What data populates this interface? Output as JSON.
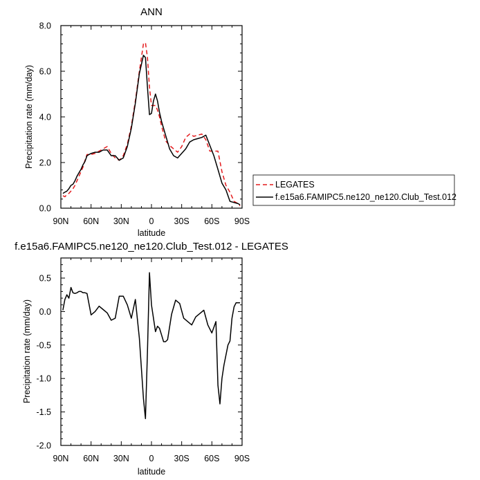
{
  "chart_data": [
    {
      "type": "line",
      "title": "ANN",
      "xlabel": "latitude",
      "ylabel": "Precipitation rate (mm/day)",
      "xlim": [
        90,
        -90
      ],
      "ylim": [
        0,
        8
      ],
      "xticks": [
        90,
        60,
        30,
        0,
        -30,
        -60,
        -90
      ],
      "xtick_labels": [
        "90N",
        "60N",
        "30N",
        "0",
        "30S",
        "60S",
        "90S"
      ],
      "yticks": [
        0,
        2,
        4,
        6,
        8
      ],
      "ytick_labels": [
        "0.0",
        "2.0",
        "4.0",
        "6.0",
        "8.0"
      ],
      "legend_position": "right",
      "series": [
        {
          "name": "LEGATES",
          "color": "#e41a1c",
          "dash": true,
          "x": [
            88,
            86,
            84,
            82,
            80,
            78,
            76,
            74,
            72,
            70,
            68,
            66,
            64,
            62,
            60,
            56,
            52,
            48,
            44,
            40,
            36,
            32,
            28,
            24,
            20,
            16,
            12,
            8,
            6,
            4,
            2,
            0,
            -2,
            -4,
            -6,
            -8,
            -10,
            -14,
            -18,
            -22,
            -26,
            -30,
            -34,
            -38,
            -42,
            -46,
            -50,
            -54,
            -58,
            -62,
            -66,
            -70,
            -74,
            -78,
            -82,
            -86,
            -88
          ],
          "y": [
            0.55,
            0.5,
            0.6,
            0.65,
            0.75,
            0.85,
            1.0,
            1.2,
            1.4,
            1.6,
            1.8,
            2.1,
            2.35,
            2.35,
            2.35,
            2.4,
            2.5,
            2.6,
            2.7,
            2.4,
            2.2,
            2.1,
            2.3,
            2.8,
            3.6,
            4.7,
            6.0,
            7.2,
            7.25,
            6.6,
            5.3,
            4.5,
            4.5,
            4.5,
            4.3,
            4.0,
            3.6,
            2.95,
            2.75,
            2.6,
            2.45,
            2.7,
            3.1,
            3.25,
            3.15,
            3.2,
            3.25,
            3.0,
            2.5,
            2.5,
            2.5,
            1.6,
            1.0,
            0.7,
            0.3,
            0.2,
            0.1
          ]
        },
        {
          "name": "f.e15a6.FAMIPC5.ne120_ne120.Club_Test.012",
          "color": "#000000",
          "dash": false,
          "x": [
            88,
            86,
            84,
            82,
            80,
            78,
            76,
            74,
            72,
            70,
            68,
            66,
            64,
            62,
            60,
            56,
            52,
            48,
            44,
            40,
            36,
            32,
            28,
            24,
            20,
            16,
            12,
            8,
            6,
            4,
            2,
            0,
            -2,
            -4,
            -6,
            -8,
            -10,
            -14,
            -18,
            -22,
            -26,
            -30,
            -34,
            -38,
            -42,
            -46,
            -50,
            -54,
            -58,
            -62,
            -66,
            -70,
            -74,
            -78,
            -82,
            -86,
            -88
          ],
          "y": [
            0.65,
            0.7,
            0.75,
            0.85,
            1.0,
            1.05,
            1.2,
            1.4,
            1.55,
            1.7,
            1.9,
            2.05,
            2.3,
            2.35,
            2.4,
            2.45,
            2.45,
            2.55,
            2.55,
            2.3,
            2.3,
            2.1,
            2.2,
            2.7,
            3.5,
            4.6,
            5.9,
            6.7,
            6.6,
            5.3,
            4.1,
            4.15,
            4.7,
            5.0,
            4.7,
            4.2,
            3.8,
            3.2,
            2.6,
            2.3,
            2.2,
            2.4,
            2.6,
            2.9,
            3.0,
            3.05,
            3.1,
            3.2,
            2.75,
            2.3,
            1.7,
            1.1,
            0.8,
            0.3,
            0.25,
            0.2,
            0.15
          ]
        }
      ]
    },
    {
      "type": "line",
      "title": "f.e15a6.FAMIPC5.ne120_ne120.Club_Test.012 - LEGATES",
      "xlabel": "latitude",
      "ylabel": "Precipitation rate (mm/day)",
      "xlim": [
        90,
        -90
      ],
      "ylim": [
        -2,
        0.8
      ],
      "xticks": [
        90,
        60,
        30,
        0,
        -30,
        -60,
        -90
      ],
      "xtick_labels": [
        "90N",
        "60N",
        "30N",
        "0",
        "30S",
        "60S",
        "90S"
      ],
      "yticks": [
        0.5,
        0,
        -0.5,
        -1,
        -1.5,
        -2
      ],
      "ytick_labels": [
        "0.5",
        "0.0",
        "-0.5",
        "-1.0",
        "-1.5",
        "-2.0"
      ],
      "series": [
        {
          "color": "#000000",
          "x": [
            88,
            86,
            84,
            82,
            80,
            78,
            76,
            74,
            72,
            70,
            68,
            66,
            64,
            60,
            56,
            52,
            48,
            44,
            40,
            36,
            32,
            28,
            24,
            20,
            16,
            12,
            8,
            6,
            4,
            2,
            0,
            -2,
            -4,
            -6,
            -8,
            -10,
            -12,
            -14,
            -16,
            -20,
            -24,
            -28,
            -32,
            -36,
            -40,
            -44,
            -48,
            -52,
            -56,
            -60,
            -64,
            -66,
            -68,
            -70,
            -72,
            -76,
            -78,
            -80,
            -82,
            -84,
            -86,
            -88
          ],
          "y": [
            0.02,
            0.18,
            0.25,
            0.2,
            0.36,
            0.28,
            0.27,
            0.28,
            0.3,
            0.3,
            0.28,
            0.28,
            0.27,
            -0.05,
            0.0,
            0.08,
            0.03,
            -0.02,
            -0.13,
            -0.1,
            0.23,
            0.23,
            0.1,
            -0.1,
            0.18,
            -0.4,
            -1.3,
            -1.6,
            -0.6,
            0.58,
            0.1,
            -0.1,
            -0.3,
            -0.22,
            -0.25,
            -0.35,
            -0.45,
            -0.45,
            -0.42,
            -0.04,
            0.17,
            0.12,
            -0.1,
            -0.15,
            -0.2,
            -0.08,
            -0.03,
            0.02,
            -0.2,
            -0.32,
            -0.15,
            -1.1,
            -1.38,
            -1.0,
            -0.8,
            -0.5,
            -0.44,
            -0.1,
            0.07,
            0.13,
            0.13,
            0.13
          ]
        }
      ]
    }
  ],
  "legend": {
    "item1": "LEGATES",
    "item2": "f.e15a6.FAMIPC5.ne120_ne120.Club_Test.012"
  }
}
